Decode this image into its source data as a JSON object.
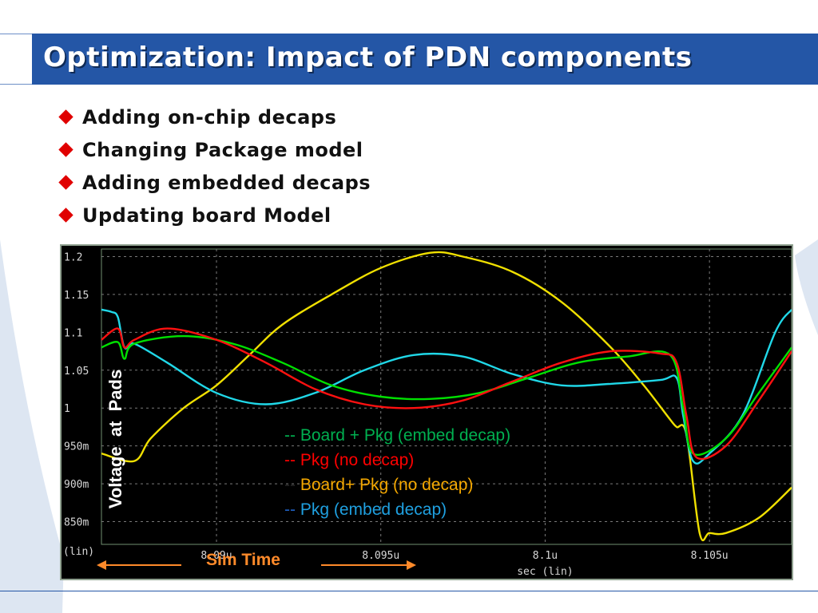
{
  "slide": {
    "title": "Optimization: Impact of PDN components",
    "bullets": [
      "Adding on-chip decaps",
      "Changing Package model",
      "Adding embedded decaps",
      "Updating board Model"
    ],
    "accent_color": "#2456a6",
    "bullet_color": "#e00000",
    "bullet_icon": "red-diamond-icon"
  },
  "plot": {
    "y_axis_label": "Voltage  at  Pads",
    "x_axis_annotation": "Sim Time",
    "legend": [
      {
        "marker": "--",
        "text": "Board + Pkg (embed decap)",
        "marker_color": "#00b050",
        "text_color": "#00b050"
      },
      {
        "marker": "--",
        "text": "Pkg (no decap)",
        "marker_color": "#ff0000",
        "text_color": "#ff0000"
      },
      {
        "marker": "--",
        "text": "Board+ Pkg (no decap)",
        "marker_color": "#222222",
        "text_color": "#f5a800"
      },
      {
        "marker": "--",
        "text": "Pkg (embed decap)",
        "marker_color": "#1f5fbf",
        "text_color": "#1fa0e0"
      }
    ]
  },
  "chart_data": {
    "type": "line",
    "xlabel": "sec (lin)",
    "ylabel_unit": "(lin)",
    "xlim": [
      8.0865,
      8.1075
    ],
    "ylim": [
      0.82,
      1.21
    ],
    "x_ticks": [
      8.09,
      8.095,
      8.1,
      8.105
    ],
    "x_tick_labels": [
      "8.09u",
      "8.095u",
      "8.1u",
      "8.105u"
    ],
    "y_ticks": [
      0.85,
      0.9,
      0.95,
      1.0,
      1.05,
      1.1,
      1.15,
      1.2
    ],
    "y_tick_labels": [
      "850m",
      "900m",
      "950m",
      "1",
      "1.05",
      "1.1",
      "1.15",
      "1.2"
    ],
    "grid": true,
    "series": [
      {
        "name": "Board+ Pkg (no decap)",
        "color": "#f0e000",
        "points": [
          [
            8.0865,
            0.94
          ],
          [
            8.0875,
            0.93
          ],
          [
            8.088,
            0.96
          ],
          [
            8.089,
            1.0
          ],
          [
            8.09,
            1.03
          ],
          [
            8.091,
            1.07
          ],
          [
            8.092,
            1.11
          ],
          [
            8.0935,
            1.15
          ],
          [
            8.095,
            1.185
          ],
          [
            8.0965,
            1.205
          ],
          [
            8.0975,
            1.2
          ],
          [
            8.099,
            1.18
          ],
          [
            8.1005,
            1.14
          ],
          [
            8.102,
            1.08
          ],
          [
            8.103,
            1.03
          ],
          [
            8.1038,
            0.985
          ],
          [
            8.104,
            0.975
          ],
          [
            8.1043,
            0.965
          ],
          [
            8.1047,
            0.835
          ],
          [
            8.105,
            0.835
          ],
          [
            8.1055,
            0.835
          ],
          [
            8.1065,
            0.855
          ],
          [
            8.1075,
            0.895
          ]
        ]
      },
      {
        "name": "Pkg (embed decap)",
        "color": "#20d8e8",
        "points": [
          [
            8.0865,
            1.13
          ],
          [
            8.0868,
            1.127
          ],
          [
            8.087,
            1.12
          ],
          [
            8.0872,
            1.08
          ],
          [
            8.0875,
            1.085
          ],
          [
            8.0885,
            1.06
          ],
          [
            8.09,
            1.02
          ],
          [
            8.0915,
            1.005
          ],
          [
            8.093,
            1.02
          ],
          [
            8.0945,
            1.05
          ],
          [
            8.096,
            1.07
          ],
          [
            8.0975,
            1.068
          ],
          [
            8.099,
            1.045
          ],
          [
            8.1005,
            1.03
          ],
          [
            8.102,
            1.032
          ],
          [
            8.1035,
            1.037
          ],
          [
            8.104,
            1.04
          ],
          [
            8.1042,
            0.99
          ],
          [
            8.1045,
            0.93
          ],
          [
            8.105,
            0.94
          ],
          [
            8.106,
            0.99
          ],
          [
            8.107,
            1.1
          ],
          [
            8.1075,
            1.13
          ]
        ]
      },
      {
        "name": "Board + Pkg (embed decap)",
        "color": "#00e000",
        "points": [
          [
            8.0865,
            1.08
          ],
          [
            8.087,
            1.087
          ],
          [
            8.0872,
            1.065
          ],
          [
            8.0875,
            1.085
          ],
          [
            8.089,
            1.095
          ],
          [
            8.0905,
            1.085
          ],
          [
            8.092,
            1.06
          ],
          [
            8.0935,
            1.03
          ],
          [
            8.095,
            1.015
          ],
          [
            8.0965,
            1.012
          ],
          [
            8.098,
            1.02
          ],
          [
            8.0995,
            1.04
          ],
          [
            8.101,
            1.06
          ],
          [
            8.1025,
            1.068
          ],
          [
            8.1038,
            1.07
          ],
          [
            8.1042,
            1.0
          ],
          [
            8.1045,
            0.94
          ],
          [
            8.1055,
            0.96
          ],
          [
            8.1065,
            1.02
          ],
          [
            8.1075,
            1.08
          ]
        ]
      },
      {
        "name": "Pkg (no decap)",
        "color": "#ff1010",
        "points": [
          [
            8.0865,
            1.09
          ],
          [
            8.087,
            1.105
          ],
          [
            8.0872,
            1.08
          ],
          [
            8.0875,
            1.09
          ],
          [
            8.0885,
            1.105
          ],
          [
            8.09,
            1.09
          ],
          [
            8.0915,
            1.06
          ],
          [
            8.093,
            1.025
          ],
          [
            8.0945,
            1.005
          ],
          [
            8.096,
            1.0
          ],
          [
            8.0975,
            1.01
          ],
          [
            8.099,
            1.035
          ],
          [
            8.1005,
            1.06
          ],
          [
            8.102,
            1.075
          ],
          [
            8.1035,
            1.072
          ],
          [
            8.104,
            1.06
          ],
          [
            8.1043,
            0.99
          ],
          [
            8.1046,
            0.935
          ],
          [
            8.1055,
            0.95
          ],
          [
            8.1065,
            1.01
          ],
          [
            8.1075,
            1.075
          ]
        ]
      }
    ]
  }
}
